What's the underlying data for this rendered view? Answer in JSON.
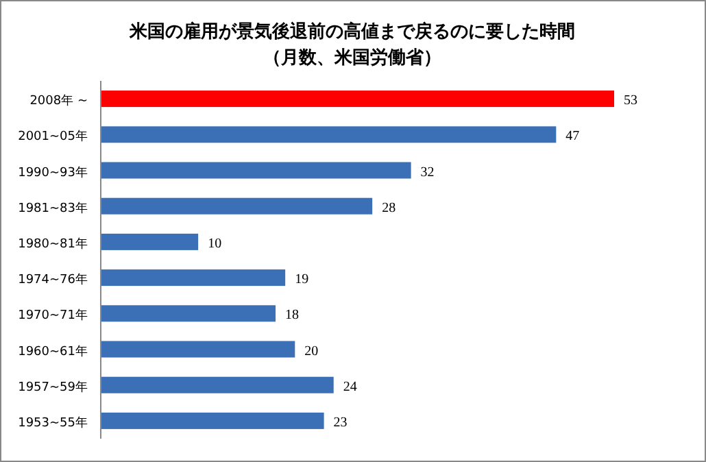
{
  "chart_data": {
    "type": "bar",
    "orientation": "horizontal",
    "title": "米国の雇用が景気後退前の高値まで戻るのに要した時間",
    "subtitle": "（月数、米国労働省）",
    "categories": [
      "2008年 ~",
      "2001~05年",
      "1990~93年",
      "1981~83年",
      "1980~81年",
      "1974~76年",
      "1970~71年",
      "1960~61年",
      "1957~59年",
      "1953~55年"
    ],
    "values": [
      53,
      47,
      32,
      28,
      10,
      19,
      18,
      20,
      24,
      23
    ],
    "colors": [
      "#ff0000",
      "#3b6fb6",
      "#3b6fb6",
      "#3b6fb6",
      "#3b6fb6",
      "#3b6fb6",
      "#3b6fb6",
      "#3b6fb6",
      "#3b6fb6",
      "#3b6fb6"
    ],
    "data_labels": true
  }
}
